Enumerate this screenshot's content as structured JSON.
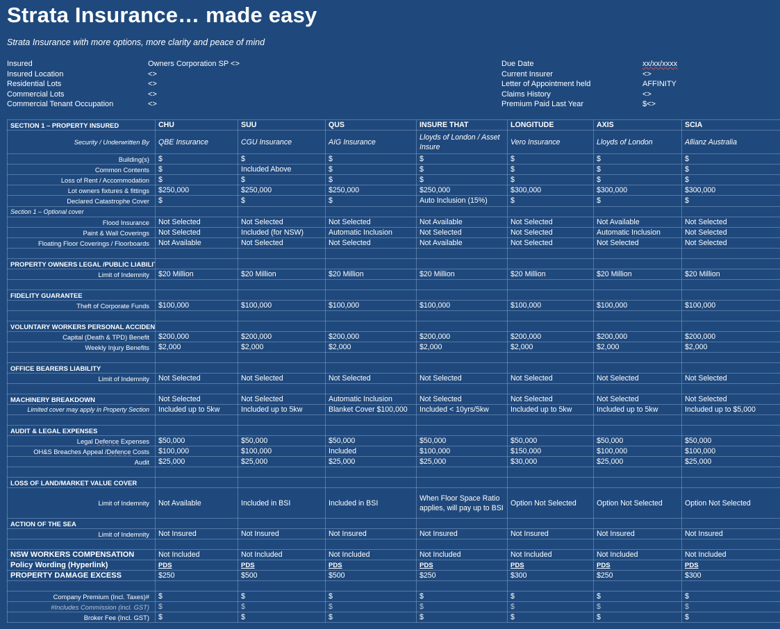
{
  "title": "Strata Insurance… made easy",
  "subtitle": "Strata Insurance with more options, more clarity and peace of mind",
  "left_info": [
    {
      "label": "Insured",
      "value": "Owners Corporation SP <>"
    },
    {
      "label": "Insured Location",
      "value": "<>"
    },
    {
      "label": "Residential Lots",
      "value": "<>"
    },
    {
      "label": "Commercial Lots",
      "value": "<>"
    },
    {
      "label": "Commercial Tenant Occupation",
      "value": "<>"
    }
  ],
  "right_info": [
    {
      "label": "Due Date",
      "value": "xx/xx/xxxx"
    },
    {
      "label": "Current Insurer",
      "value": "<>"
    },
    {
      "label": "Letter of Appointment held",
      "value": "AFFINITY"
    },
    {
      "label": "Claims History",
      "value": "<>"
    },
    {
      "label": "Premium Paid Last Year",
      "value": "$<>"
    }
  ],
  "table": {
    "header": "SECTION 1 – PROPERTY INSURED",
    "insurers": [
      "CHU",
      "SUU",
      "QUS",
      "INSURE THAT",
      "LONGITUDE",
      "AXIS",
      "SCIA"
    ],
    "rows": {
      "security": {
        "label": "Security / Underwritten By",
        "vals": [
          "QBE Insurance",
          "CGU Insurance",
          "AIG Insurance",
          "Lloyds of London / Asset Insure",
          "Vero Insurance",
          "Lloyds of London",
          "Allianz Australia"
        ]
      },
      "buildings": {
        "label": "Building(s)",
        "vals": [
          "$",
          "$",
          "$",
          "$",
          "$",
          "$",
          "$"
        ]
      },
      "contents": {
        "label": "Common Contents",
        "vals": [
          "$",
          "Included Above",
          "$",
          "$",
          "$",
          "$",
          "$"
        ]
      },
      "rent": {
        "label": "Loss of Rent / Accommodation",
        "vals": [
          "$",
          "$",
          "$",
          "$",
          "$",
          "$",
          "$"
        ]
      },
      "fixtures": {
        "label": "Lot owners fixtures & fittings",
        "vals": [
          "$250,000",
          "$250,000",
          "$250,000",
          "$250,000",
          "$300,000",
          "$300,000",
          "$300,000"
        ]
      },
      "catastrophe": {
        "label": "Declared Catastrophe Cover",
        "vals": [
          "$",
          "$",
          "$",
          "Auto Inclusion (15%)",
          "$",
          "$",
          "$"
        ]
      },
      "optional": {
        "label": "Section 1 – Optional cover"
      },
      "flood": {
        "label": "Flood Insurance",
        "vals": [
          "Not Selected",
          "Not Selected",
          "Not Selected",
          "Not Available",
          "Not Selected",
          "Not Available",
          "Not Selected"
        ]
      },
      "paint": {
        "label": "Paint & Wall Coverings",
        "vals": [
          "Not Selected",
          "Included (for NSW)",
          "Automatic Inclusion",
          "Not Selected",
          "Not Selected",
          "Automatic Inclusion",
          "Not Selected"
        ]
      },
      "floating": {
        "label": "Floating Floor Coverings / Floorboards",
        "vals": [
          "Not Available",
          "Not Selected",
          "Not Selected",
          "Not Available",
          "Not Selected",
          "Not Selected",
          "Not Selected"
        ]
      },
      "pol_head": {
        "label": "PROPERTY OWNERS LEGAL /PUBLIC LIABILITY"
      },
      "pol": {
        "label": "Limit of Indemnity",
        "vals": [
          "$20 Million",
          "$20 Million",
          "$20 Million",
          "$20 Million",
          "$20 Million",
          "$20 Million",
          "$20 Million"
        ]
      },
      "fid_head": {
        "label": "FIDELITY GUARANTEE"
      },
      "fid": {
        "label": "Theft of Corporate Funds",
        "vals": [
          "$100,000",
          "$100,000",
          "$100,000",
          "$100,000",
          "$100,000",
          "$100,000",
          "$100,000"
        ]
      },
      "vw_head": {
        "label": "VOLUNTARY WORKERS PERSONAL ACCIDENT"
      },
      "vw_cap": {
        "label": "Capital (Death & TPD) Benefit",
        "vals": [
          "$200,000",
          "$200,000",
          "$200,000",
          "$200,000",
          "$200,000",
          "$200,000",
          "$200,000"
        ]
      },
      "vw_week": {
        "label": "Weekly Injury Benefits",
        "vals": [
          "$2,000",
          "$2,000",
          "$2,000",
          "$2,000",
          "$2,000",
          "$2,000",
          "$2,000"
        ]
      },
      "ob_head": {
        "label": "OFFICE BEARERS LIABILITY"
      },
      "ob": {
        "label": "Limit of Indemnity",
        "vals": [
          "Not Selected",
          "Not Selected",
          "Not Selected",
          "Not Selected",
          "Not Selected",
          "Not Selected",
          "Not Selected"
        ]
      },
      "mb_head": {
        "label": "MACHINERY BREAKDOWN",
        "vals": [
          "Not Selected",
          "Not Selected",
          "Automatic Inclusion",
          "Not Selected",
          "Not Selected",
          "Not Selected",
          "Not Selected"
        ]
      },
      "mb_lim": {
        "label": "Limited cover may apply in Property Section",
        "vals": [
          "Included up to 5kw",
          "Included up to 5kw",
          "Blanket Cover $100,000",
          "Included < 10yrs/5kw",
          "Included up to 5kw",
          "Included up to 5kw",
          "Included up to $5,000"
        ]
      },
      "al_head": {
        "label": "AUDIT & LEGAL EXPENSES"
      },
      "legal": {
        "label_pre": "Legal ",
        "label_squig": "Defence",
        "label_post": " Expenses",
        "vals": [
          "$50,000",
          "$50,000",
          "$50,000",
          "$50,000",
          "$50,000",
          "$50,000",
          "$50,000"
        ]
      },
      "ohs": {
        "label_pre": "OH&S Breaches Appeal /",
        "label_squig": "Defence",
        "label_post": " Costs",
        "vals": [
          "$100,000",
          "$100,000",
          "Included",
          "$100,000",
          "$150,000",
          "$100,000",
          "$100,000"
        ]
      },
      "audit": {
        "label": "Audit",
        "vals": [
          "$25,000",
          "$25,000",
          "$25,000",
          "$25,000",
          "$30,000",
          "$25,000",
          "$25,000"
        ]
      },
      "lol_head": {
        "label": "LOSS OF LAND/MARKET VALUE COVER"
      },
      "lol": {
        "label": "Limit of Indemnity",
        "vals": [
          "Not Available",
          "Included in BSI",
          "Included in BSI",
          "When Floor Space Ratio applies, will pay up to BSI",
          "Option Not Selected",
          "Option Not Selected",
          "Option Not Selected"
        ]
      },
      "sea_head": {
        "label": "ACTION OF THE SEA"
      },
      "sea": {
        "label": "Limit of Indemnity",
        "vals": [
          "Not Insured",
          "Not Insured",
          "Not Insured",
          "Not Insured",
          "Not Insured",
          "Not Insured",
          "Not Insured"
        ]
      },
      "nsw": {
        "label": "NSW WORKERS COMPENSATION",
        "vals": [
          "Not Included",
          "Not Included",
          "Not Included",
          "Not Included",
          "Not Included",
          "Not Included",
          "Not Included"
        ]
      },
      "pds": {
        "label": "Policy Wording (Hyperlink)",
        "vals": [
          "PDS",
          "PDS",
          "PDS",
          "PDS",
          "PDS",
          "PDS",
          "PDS"
        ]
      },
      "excess": {
        "label": "PROPERTY DAMAGE EXCESS",
        "vals": [
          "$250",
          "$500",
          "$500",
          "$250",
          "$300",
          "$250",
          "$300"
        ]
      },
      "premium": {
        "label": "Company Premium (Incl. Taxes)#",
        "vals": [
          "$",
          "$",
          "$",
          "$",
          "$",
          "$",
          "$"
        ]
      },
      "commission": {
        "label": "#Includes Commission (incl. GST)",
        "vals": [
          "$",
          "$",
          "$",
          "$",
          "$",
          "$",
          "$"
        ]
      },
      "broker": {
        "label": "Broker Fee (Incl. GST)",
        "vals": [
          "$",
          "$",
          "$",
          "$",
          "$",
          "$",
          "$"
        ]
      }
    }
  }
}
